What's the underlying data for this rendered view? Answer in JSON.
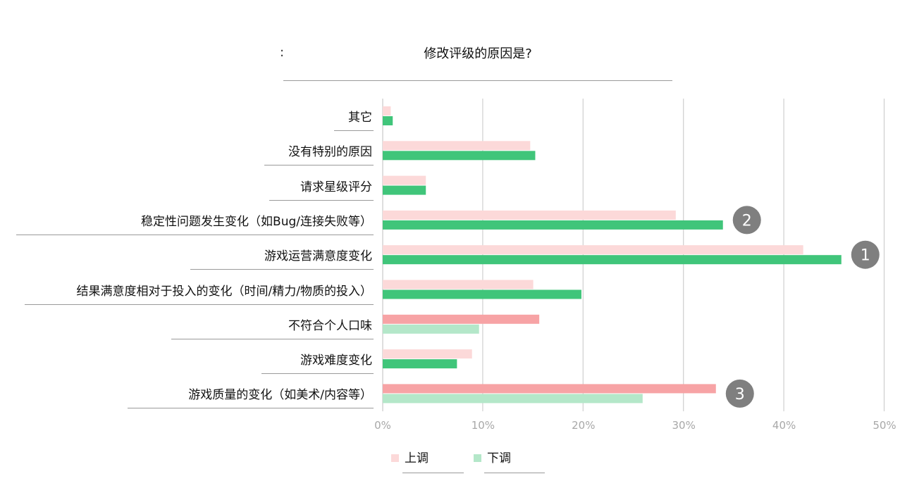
{
  "title": "修改评级的原因是?",
  "colors": {
    "up_light": "#fcd9d9",
    "up_strong": "#f7a3a5",
    "down_light": "#b4e7c9",
    "down_strong": "#40c57a",
    "grid": "#cfcfcf",
    "badge": "#7f7f7f"
  },
  "legend": {
    "up": "上调",
    "down": "下调"
  },
  "chart_data": {
    "type": "bar",
    "orientation": "horizontal",
    "title": "修改评级的原因是?",
    "categories": [
      "其它",
      "没有特别的原因",
      "请求星级评分",
      "稳定性问题发生变化（如Bug/连接失败等）",
      "游戏运营满意度变化",
      "结果满意度相对于投入的变化（时间/精力/物质的投入）",
      "不符合个人口味",
      "游戏难度变化",
      "游戏质量的变化（如美术/内容等）"
    ],
    "series": [
      {
        "name": "上调",
        "values": [
          0.8,
          14.7,
          4.3,
          29.2,
          41.9,
          15.0,
          15.6,
          8.9,
          33.2
        ]
      },
      {
        "name": "下调",
        "values": [
          1.0,
          15.2,
          4.3,
          33.9,
          45.7,
          19.8,
          9.6,
          7.4,
          25.9
        ]
      }
    ],
    "emphasis": [
      "down",
      "down",
      "down",
      "down",
      "down",
      "down",
      "up",
      "down",
      "up"
    ],
    "badges": [
      {
        "category_index": 4,
        "label": "1"
      },
      {
        "category_index": 3,
        "label": "2"
      },
      {
        "category_index": 8,
        "label": "3"
      }
    ],
    "xlim": [
      0,
      50
    ],
    "xticks": [
      "0%",
      "10%",
      "20%",
      "30%",
      "40%",
      "50%"
    ],
    "grid": true,
    "legend_position": "bottom"
  }
}
